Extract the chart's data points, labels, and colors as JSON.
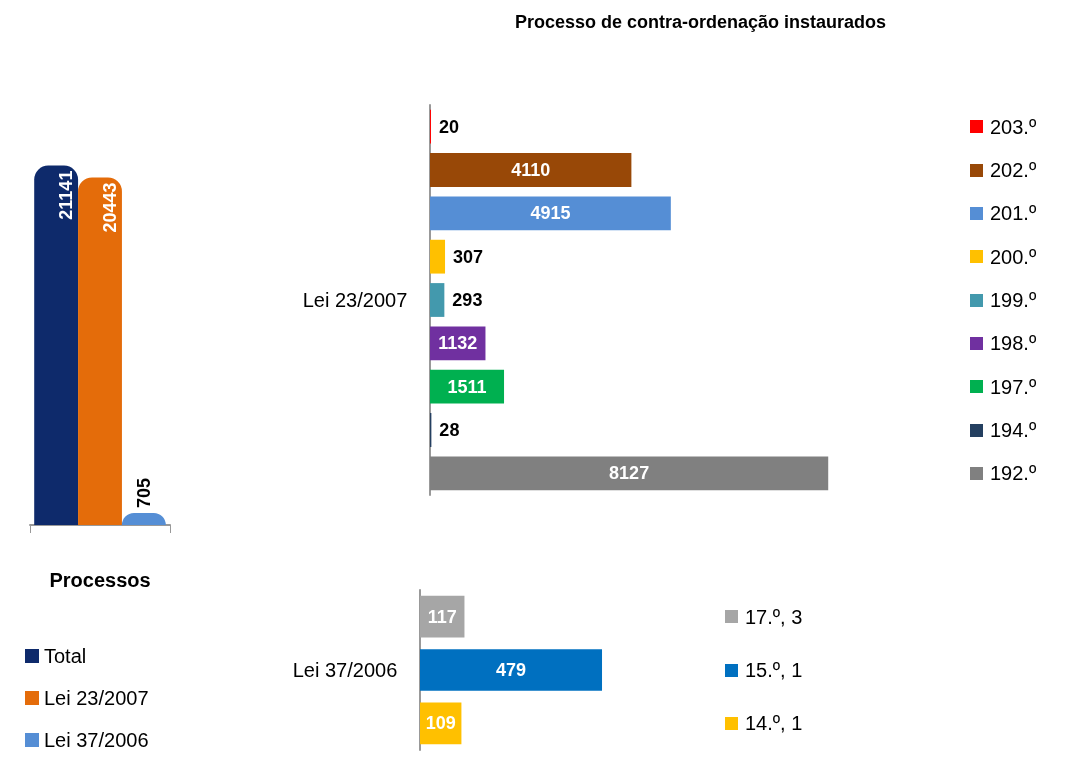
{
  "chart_data": [
    {
      "type": "bar",
      "xlabel": "Processos",
      "categories": [
        null
      ],
      "data_labels": true,
      "legend": "bottom",
      "tick_labels": false,
      "series": [
        {
          "name": "Total",
          "color": "#0e2a6b",
          "values": [
            21141
          ]
        },
        {
          "name": "Lei 23/2007",
          "color": "#e46c0a",
          "values": [
            20443
          ]
        },
        {
          "name": "Lei 37/2006",
          "color": "#558ed5",
          "values": [
            705
          ]
        }
      ]
    },
    {
      "type": "bar",
      "orientation": "horizontal",
      "title": "Processo de contra-ordenação instaurados",
      "ylabel": "Lei 23/2007",
      "data_labels": true,
      "tick_labels": "y",
      "categories": [
        "203.º",
        "202.º",
        "201.º",
        "200.º",
        "199.º",
        "198.º",
        "197.º",
        "194.º",
        "192.º"
      ],
      "values": [
        20,
        4110,
        4915,
        307,
        293,
        1132,
        1511,
        28,
        8127
      ],
      "colors": [
        "#ff0000",
        "#984807",
        "#558ed5",
        "#ffc000",
        "#4399ad",
        "#7030a0",
        "#00b050",
        "#243f60",
        "#808080"
      ]
    },
    {
      "type": "bar",
      "orientation": "horizontal",
      "ylabel": "Lei 37/2006",
      "data_labels": true,
      "tick_labels": "y",
      "categories": [
        "17.º, 3",
        "15.º, 1",
        "14.º, 1"
      ],
      "values": [
        117,
        479,
        109
      ],
      "colors": [
        "#a6a6a6",
        "#0070c0",
        "#ffc000"
      ]
    }
  ]
}
